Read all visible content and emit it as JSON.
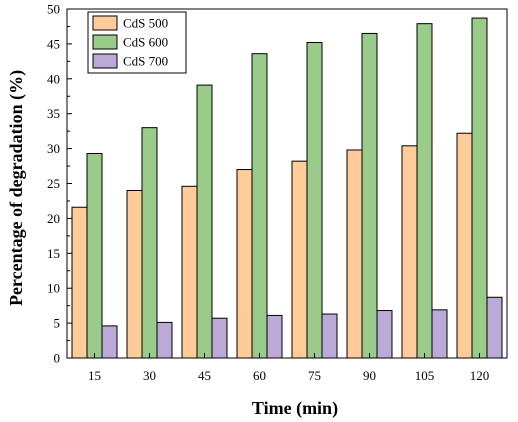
{
  "chart_data": {
    "type": "bar",
    "categories": [
      "15",
      "30",
      "45",
      "60",
      "75",
      "90",
      "105",
      "120"
    ],
    "series": [
      {
        "name": "CdS 500",
        "color": "#FFCC99",
        "values": [
          21.6,
          24.0,
          24.6,
          27.0,
          28.2,
          29.8,
          30.4,
          32.2
        ]
      },
      {
        "name": "CdS 600",
        "color": "#99CC88",
        "values": [
          29.3,
          33.0,
          39.1,
          43.6,
          45.2,
          46.5,
          47.9,
          48.7
        ]
      },
      {
        "name": "CdS 700",
        "color": "#BBAAD8",
        "values": [
          4.6,
          5.1,
          5.7,
          6.1,
          6.3,
          6.8,
          6.9,
          8.7
        ]
      }
    ],
    "xlabel": "Time (min)",
    "ylabel": "Percentage of degradation (%)",
    "ylim": [
      0,
      50
    ],
    "yticks": [
      0,
      5,
      10,
      15,
      20,
      25,
      30,
      35,
      40,
      45,
      50
    ],
    "legend_position": "top-left",
    "grid": false
  }
}
